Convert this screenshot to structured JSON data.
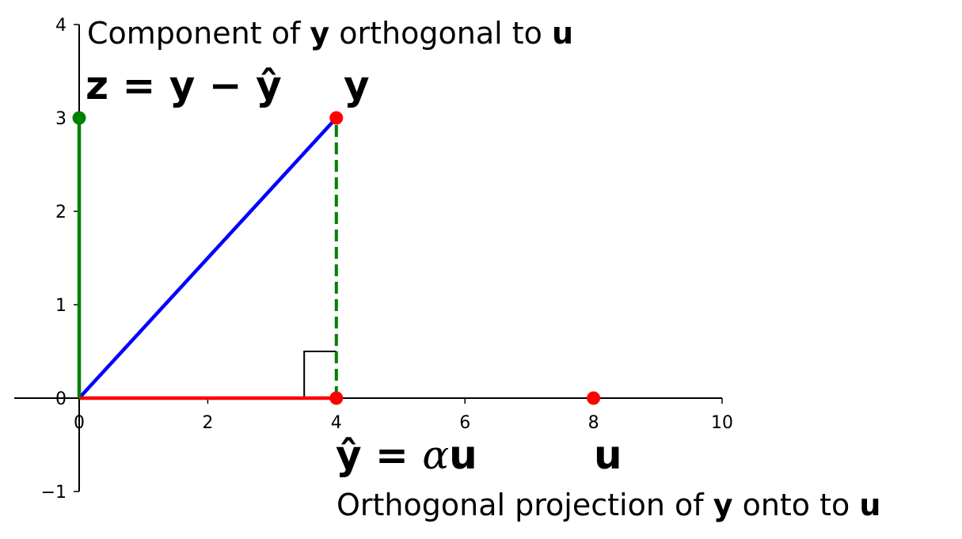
{
  "chart_data": {
    "type": "vector-diagram",
    "xlim": [
      -1,
      10
    ],
    "ylim": [
      -1,
      4
    ],
    "xticks": [
      "0",
      "2",
      "4",
      "6",
      "8",
      "10"
    ],
    "yticks": [
      "−1",
      "0",
      "1",
      "2",
      "3",
      "4"
    ],
    "vectors": [
      {
        "from": [
          0,
          0
        ],
        "to": [
          4,
          3
        ],
        "color": "#0000ff",
        "style": "solid"
      },
      {
        "from": [
          0,
          0
        ],
        "to": [
          4,
          0
        ],
        "color": "#ff0000",
        "style": "solid"
      },
      {
        "from": [
          0,
          0
        ],
        "to": [
          0,
          3
        ],
        "color": "#008000",
        "style": "solid"
      },
      {
        "from": [
          4,
          0
        ],
        "to": [
          4,
          3
        ],
        "color": "#008000",
        "style": "dashed"
      }
    ],
    "points": [
      {
        "x": 4,
        "y": 3,
        "color": "#ff0000"
      },
      {
        "x": 4,
        "y": 0,
        "color": "#ff0000"
      },
      {
        "x": 8,
        "y": 0,
        "color": "#ff0000"
      },
      {
        "x": 0,
        "y": 3,
        "color": "#008000"
      }
    ],
    "right_angle_marker": {
      "corner": [
        4,
        0
      ],
      "size": 0.5
    },
    "labels": {
      "top_caption": {
        "pre": "Component of ",
        "b1": "y",
        "mid": " orthogonal to ",
        "b2": "u"
      },
      "z_label": "z = y − ŷ",
      "y_label": "y",
      "yhat_label": {
        "pre": "ŷ = ",
        "alpha": "α",
        "post": "u"
      },
      "u_label": "u",
      "bottom_caption": {
        "pre": "Orthogonal projection of ",
        "b1": "y",
        "mid": " onto to ",
        "b2": "u"
      }
    }
  }
}
